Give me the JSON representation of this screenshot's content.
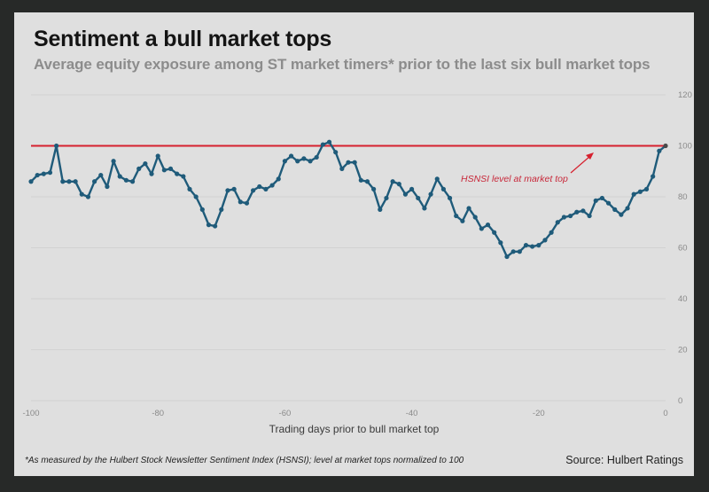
{
  "chart_data": {
    "type": "line",
    "title": "Sentiment a bull market tops",
    "subtitle": "Average equity exposure among ST market timers* prior to the last six bull market tops",
    "xlabel": "Trading days prior to bull market top",
    "ylabel": "",
    "xlim": [
      -100,
      0
    ],
    "ylim": [
      0,
      120
    ],
    "x_ticks": [
      -100,
      -80,
      -60,
      -40,
      -20,
      0
    ],
    "x_tick_labels": [
      "-100",
      "-80",
      "-60",
      "-40",
      "-20",
      "0"
    ],
    "y_ticks": [
      0,
      20,
      40,
      60,
      80,
      100,
      120
    ],
    "y_tick_labels": [
      "0",
      "20",
      "40",
      "60",
      "80",
      "100",
      "120"
    ],
    "grid": "horizontal",
    "reference_line": {
      "y": 100,
      "color": "#d6202e",
      "label": "HSNSI level at market top"
    },
    "series": [
      {
        "name": "HSNSI",
        "color": "#1f5b7a",
        "x": [
          -100,
          -99,
          -98,
          -97,
          -96,
          -95,
          -94,
          -93,
          -92,
          -91,
          -90,
          -89,
          -88,
          -87,
          -86,
          -85,
          -84,
          -83,
          -82,
          -81,
          -80,
          -79,
          -78,
          -77,
          -76,
          -75,
          -74,
          -73,
          -72,
          -71,
          -70,
          -69,
          -68,
          -67,
          -66,
          -65,
          -64,
          -63,
          -62,
          -61,
          -60,
          -59,
          -58,
          -57,
          -56,
          -55,
          -54,
          -53,
          -52,
          -51,
          -50,
          -49,
          -48,
          -47,
          -46,
          -45,
          -44,
          -43,
          -42,
          -41,
          -40,
          -39,
          -38,
          -37,
          -36,
          -35,
          -34,
          -33,
          -32,
          -31,
          -30,
          -29,
          -28,
          -27,
          -26,
          -25,
          -24,
          -23,
          -22,
          -21,
          -20,
          -19,
          -18,
          -17,
          -16,
          -15,
          -14,
          -13,
          -12,
          -11,
          -10,
          -9,
          -8,
          -7,
          -6,
          -5,
          -4,
          -3,
          -2,
          -1,
          0
        ],
        "values": [
          86,
          88.5,
          89,
          89.5,
          100,
          86,
          86,
          86,
          81,
          80,
          86,
          88.5,
          84,
          94,
          88,
          86.5,
          86,
          91,
          93,
          89,
          96,
          90.5,
          91,
          89,
          88,
          83,
          80,
          75,
          69,
          68.5,
          75,
          82.5,
          83,
          78,
          77.5,
          82.5,
          84,
          83,
          84.5,
          87,
          94,
          96,
          94,
          95,
          94,
          95.5,
          100.5,
          101.5,
          97.5,
          91,
          93.5,
          93.5,
          86.5,
          86,
          83,
          75,
          79.5,
          86,
          85,
          81,
          83,
          79.5,
          75.5,
          81,
          87,
          83,
          79.5,
          72.5,
          70.5,
          75.5,
          72,
          67.5,
          69,
          66,
          62,
          56.5,
          58.5,
          58.5,
          61,
          60.5,
          61,
          63,
          66,
          70,
          72,
          72.5,
          74,
          74.5,
          72.5,
          78.5,
          79.5,
          77.5,
          75,
          73,
          75.5,
          81,
          82,
          83,
          88,
          98,
          100
        ]
      }
    ]
  },
  "footnote": "*As measured by the Hulbert Stock Newsletter Sentiment Index (HSNSI); level at market tops normalized to 100",
  "source": "Source: Hulbert Ratings",
  "colors": {
    "background": "#272928",
    "card": "#dfdfdf",
    "line": "#1f5b7a",
    "reference": "#d6202e",
    "grid": "#d2d2d2"
  }
}
